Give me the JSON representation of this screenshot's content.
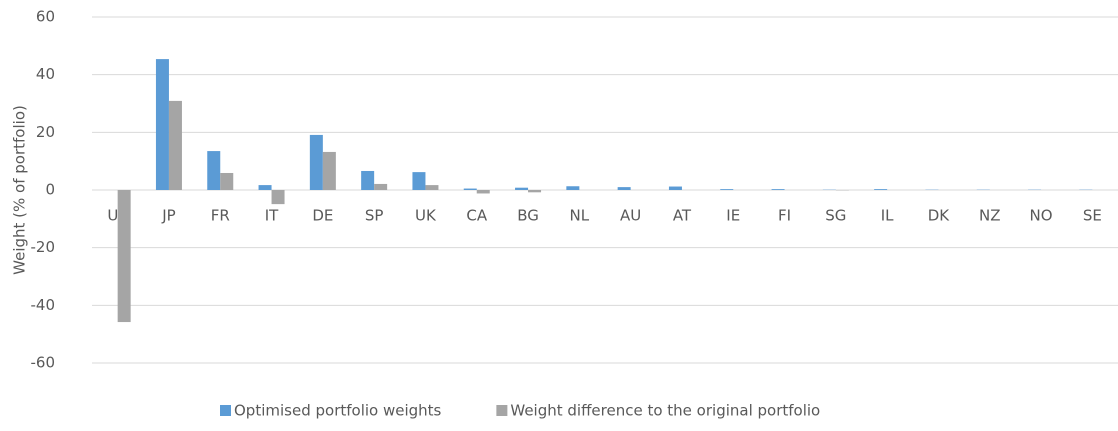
{
  "chart_data": {
    "type": "bar",
    "y_label": "Weight (% of portfolio)",
    "categories": [
      "US",
      "JP",
      "FR",
      "IT",
      "DE",
      "SP",
      "UK",
      "CA",
      "BG",
      "NL",
      "AU",
      "AT",
      "IE",
      "FI",
      "SG",
      "IL",
      "DK",
      "NZ",
      "NO",
      "SE"
    ],
    "series": [
      {
        "name": "Optimised portfolio weights",
        "color": "#5b9bd5",
        "values": [
          0,
          45.4,
          13.5,
          1.7,
          19.1,
          6.6,
          6.2,
          0.5,
          0.8,
          1.3,
          1.0,
          1.2,
          0.3,
          0.3,
          0.1,
          0.3,
          0.1,
          0.1,
          0.1,
          0.1
        ]
      },
      {
        "name": "Weight difference to the original portfolio",
        "color": "#a5a5a5",
        "values": [
          -45.8,
          30.9,
          5.9,
          -4.9,
          13.2,
          2.1,
          1.7,
          -1.2,
          -0.8,
          0,
          0,
          0,
          0,
          0,
          -0.1,
          0,
          0,
          0,
          0,
          0
        ]
      }
    ],
    "ylim": [
      -60,
      60
    ],
    "yticks": [
      -60,
      -40,
      -20,
      0,
      20,
      40,
      60
    ],
    "grid": true,
    "legend": "bottom"
  }
}
